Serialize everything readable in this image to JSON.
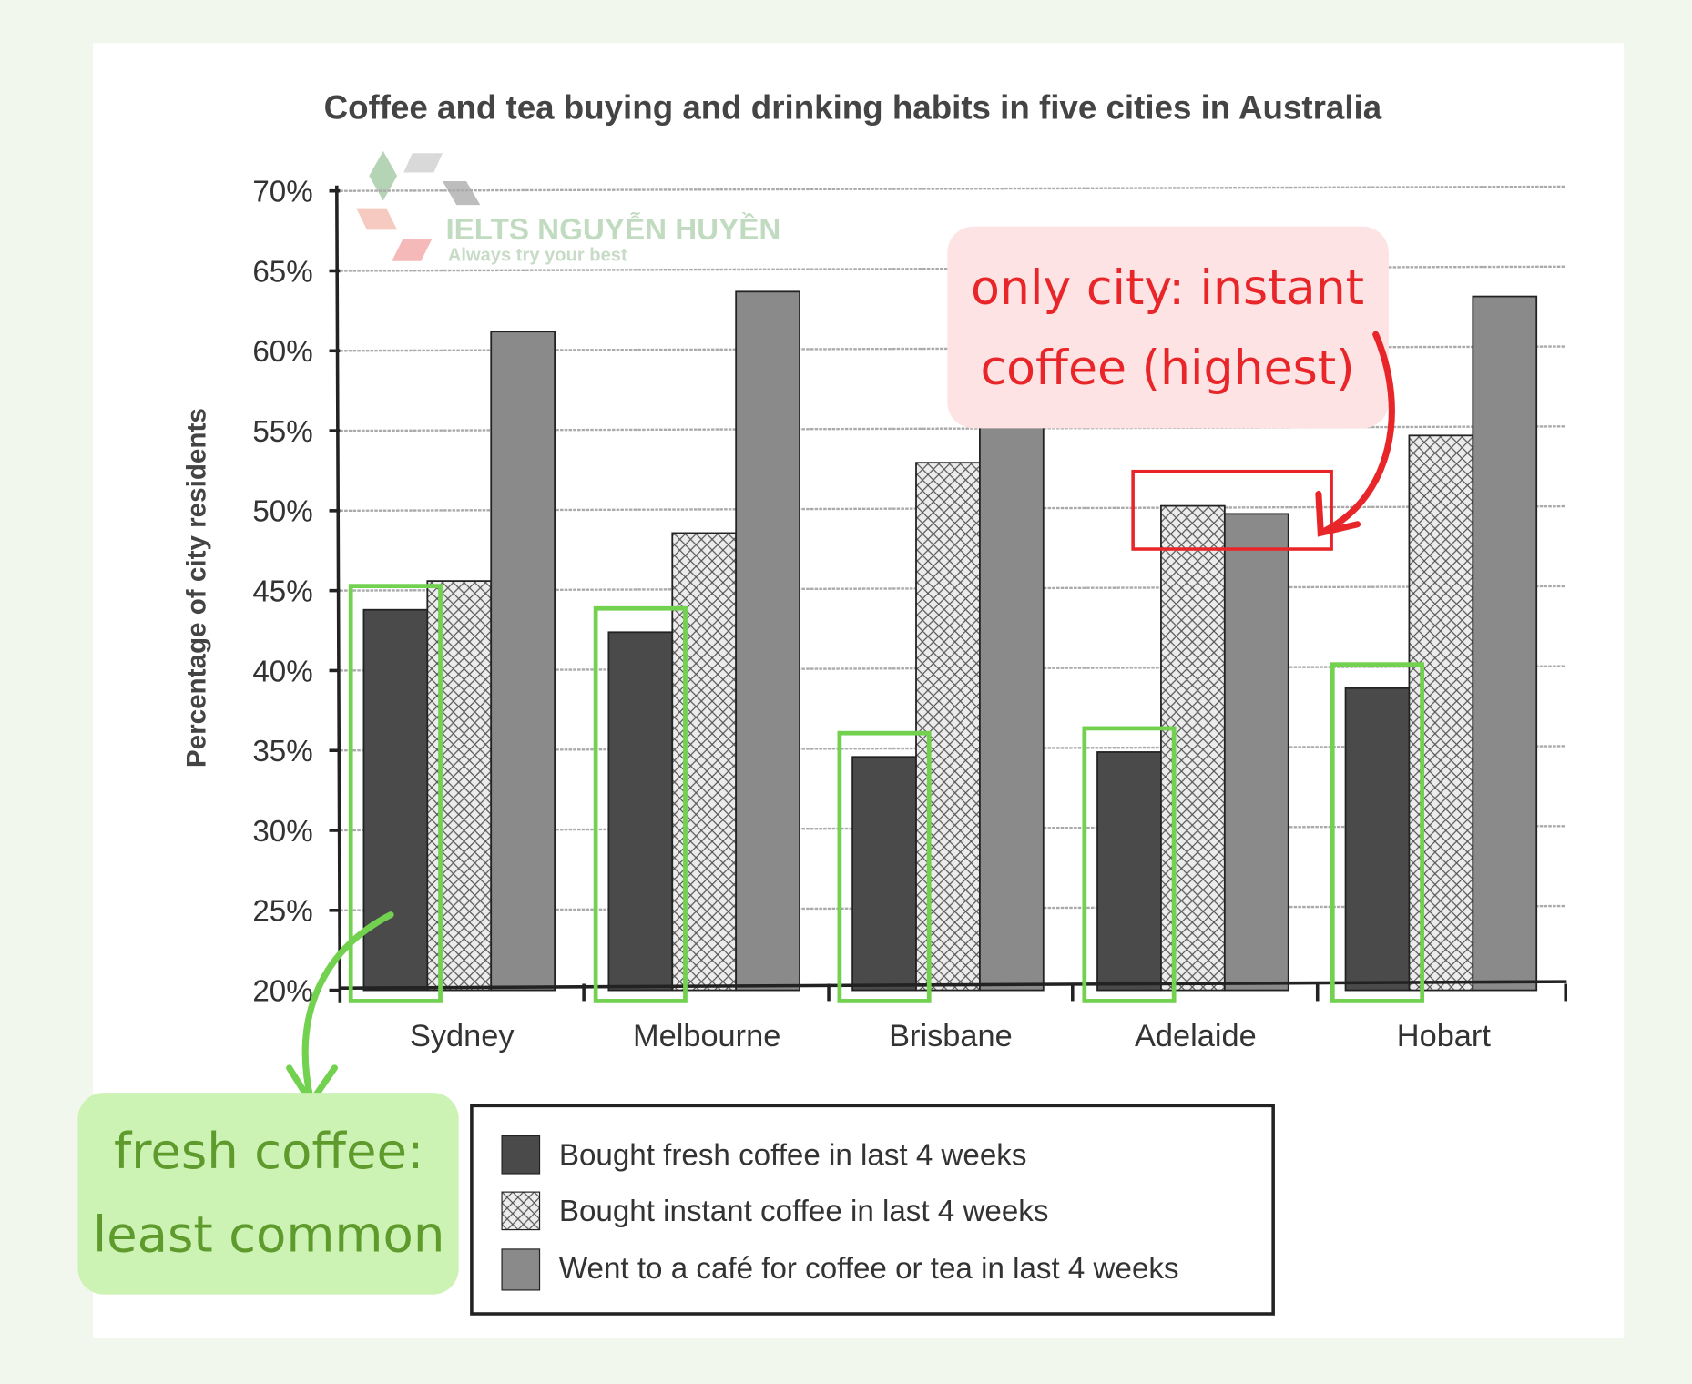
{
  "chart_data": {
    "type": "bar",
    "title": "Coffee and tea buying and drinking habits in five cities in Australia",
    "xlabel": "",
    "ylabel": "Percentage of city residents",
    "ylim": [
      20,
      70
    ],
    "yticks": [
      "20%",
      "25%",
      "30%",
      "35%",
      "40%",
      "45%",
      "50%",
      "55%",
      "60%",
      "65%",
      "70%"
    ],
    "grid": true,
    "legend_position": "bottom",
    "categories": [
      "Sydney",
      "Melbourne",
      "Brisbane",
      "Adelaide",
      "Hobart"
    ],
    "series": [
      {
        "name": "Bought fresh coffee in last 4 weeks",
        "values": [
          43.8,
          42.4,
          34.6,
          34.9,
          38.9
        ],
        "color": "#4a4a4a",
        "pattern": "solid"
      },
      {
        "name": "Bought instant coffee in last 4 weeks",
        "values": [
          45.6,
          48.6,
          53.0,
          50.3,
          54.7
        ],
        "color": "#e6e6e6",
        "pattern": "crosshatch"
      },
      {
        "name": "Went to a café for coffee or tea in last 4 weeks",
        "values": [
          61.2,
          63.7,
          57.0,
          49.8,
          63.4
        ],
        "color": "#8a8a8a",
        "pattern": "solid"
      }
    ]
  },
  "watermark": {
    "brand": "IELTS NGUYỄN HUYỀN",
    "tagline": "Always try your best",
    "letters": [
      "L",
      "T",
      "S",
      "E",
      "I"
    ]
  },
  "annotations": {
    "red": {
      "line1": "only city: instant",
      "line2": "coffee (highest)",
      "color": "#e8262a",
      "bg": "#fde3e3"
    },
    "green": {
      "line1": "fresh coffee:",
      "line2": "least common",
      "color": "#5e9a2c",
      "bg": "#ccf2b4",
      "box_color": "#72d14f"
    }
  }
}
